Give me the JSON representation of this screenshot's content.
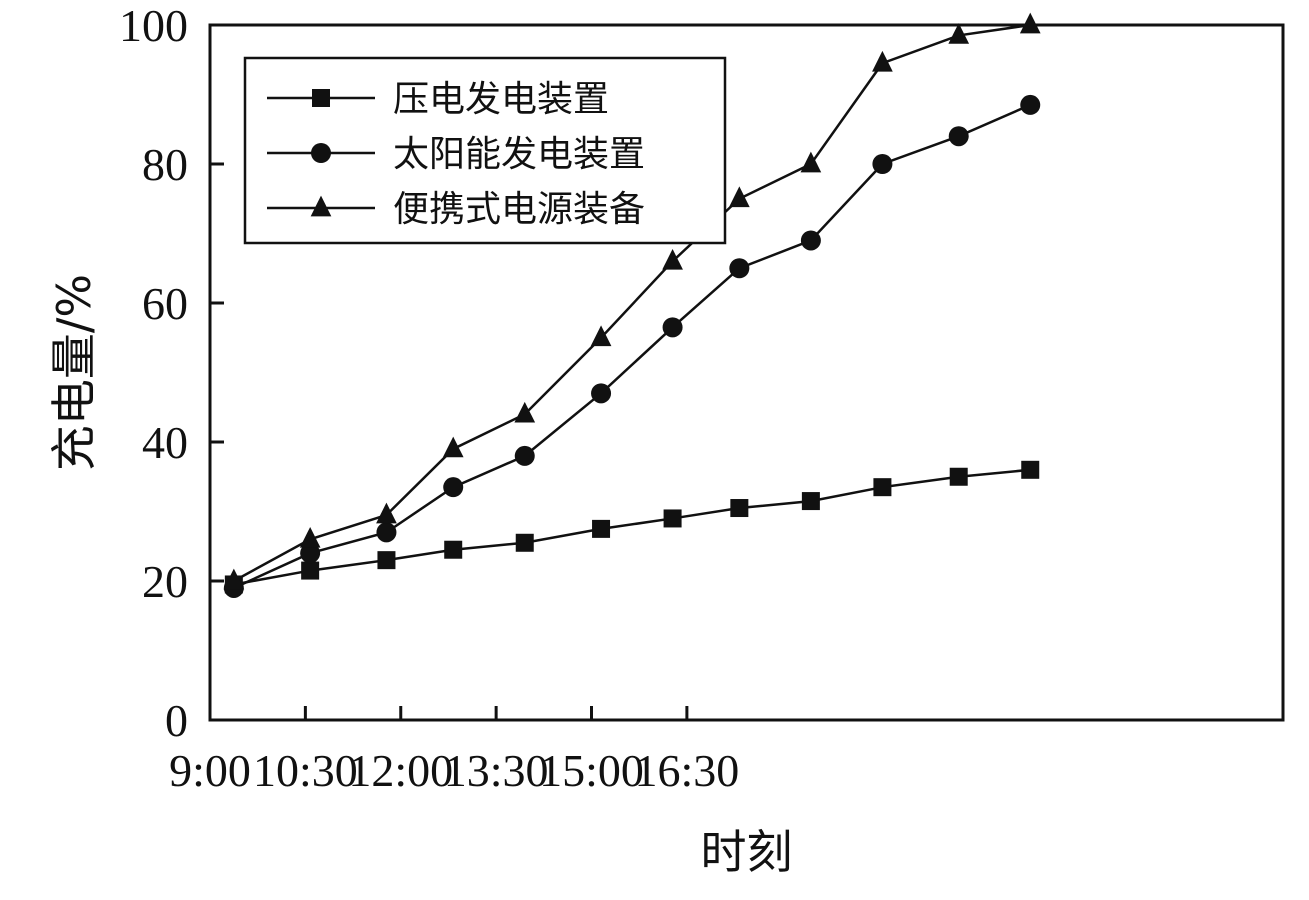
{
  "chart_data": {
    "type": "line",
    "xlabel": "时刻",
    "ylabel": "充电量/%",
    "x_tick_labels": [
      "9:00",
      "10:30",
      "12:00",
      "13:30",
      "15:00",
      "16:30"
    ],
    "xlim": [
      0,
      11.25
    ],
    "ylim": [
      0,
      100
    ],
    "y_ticks": [
      0,
      20,
      40,
      60,
      80,
      100
    ],
    "legend_position": "top-left",
    "grid": false,
    "x": [
      0.25,
      1.05,
      1.85,
      2.55,
      3.3,
      4.1,
      4.85,
      5.55,
      6.3,
      7.05,
      7.85,
      8.6
    ],
    "series": [
      {
        "name": "压电发电装置",
        "marker": "square",
        "values": [
          19.5,
          21.5,
          23,
          24.5,
          25.5,
          27.5,
          29,
          30.5,
          31.5,
          33.5,
          35,
          36
        ]
      },
      {
        "name": "太阳能发电装置",
        "marker": "circle",
        "values": [
          19,
          24,
          27,
          33.5,
          38,
          47,
          56.5,
          65,
          69,
          80,
          84,
          88.5
        ]
      },
      {
        "name": "便携式电源装备",
        "marker": "triangle",
        "values": [
          20,
          26,
          29.5,
          39,
          44,
          55,
          66,
          75,
          80,
          94.5,
          98.5,
          100
        ]
      }
    ]
  }
}
